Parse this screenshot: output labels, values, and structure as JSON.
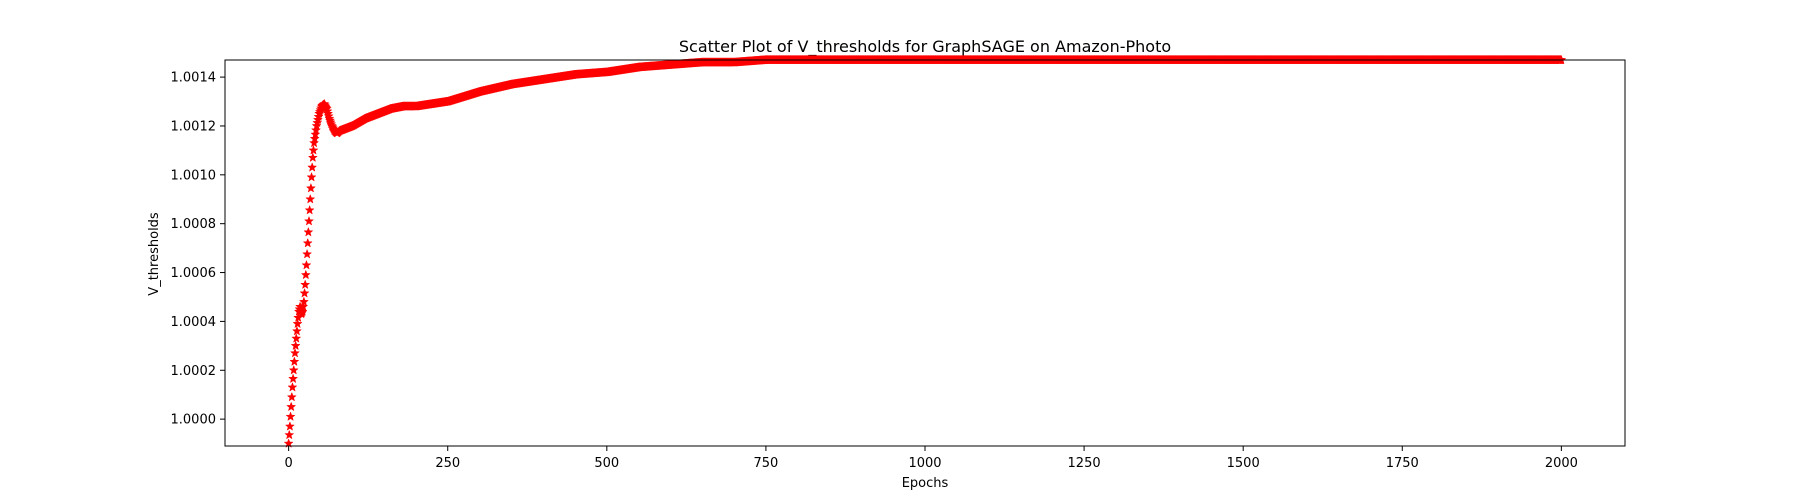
{
  "chart_data": {
    "type": "scatter",
    "title": "Scatter Plot of V_thresholds for GraphSAGE on Amazon-Photo",
    "xlabel": "Epochs",
    "ylabel": "V_thresholds",
    "xlim": [
      -100,
      2100
    ],
    "ylim": [
      0.99989,
      1.00147
    ],
    "x_ticks": [
      0,
      250,
      500,
      750,
      1000,
      1250,
      1500,
      1750,
      2000
    ],
    "x_tick_labels": [
      "0",
      "250",
      "500",
      "750",
      "1000",
      "1250",
      "1500",
      "1750",
      "2000"
    ],
    "y_ticks": [
      1.0,
      1.0002,
      1.0004,
      1.0006,
      1.0008,
      1.001,
      1.0012,
      1.0014
    ],
    "y_tick_labels": [
      "1.0000",
      "1.0002",
      "1.0004",
      "1.0006",
      "1.0008",
      "1.0010",
      "1.0012",
      "1.0014"
    ],
    "grid": false,
    "legend": "none",
    "marker": "star",
    "color": "#ff0000",
    "series": [
      {
        "x": [
          0,
          2,
          4,
          6,
          8,
          10,
          12,
          14,
          16,
          18,
          20,
          22,
          24,
          26,
          28,
          30,
          32,
          34,
          36,
          38,
          40,
          44,
          48,
          52,
          56,
          60,
          64,
          68,
          72,
          76,
          80,
          100,
          120,
          140,
          160,
          180,
          200,
          250,
          300,
          350,
          400,
          450,
          500,
          550,
          600,
          650,
          700,
          750,
          800,
          900,
          1000,
          1100,
          1200,
          1300,
          1400,
          1500,
          1600,
          1700,
          1800,
          1900,
          2000
        ],
        "y": [
          0.9999,
          0.99997,
          1.00005,
          1.00013,
          1.0002,
          1.00027,
          1.00033,
          1.00039,
          1.00044,
          1.00046,
          1.00043,
          1.00044,
          1.00048,
          1.00055,
          1.00063,
          1.00072,
          1.00081,
          1.0009,
          1.00099,
          1.00107,
          1.00113,
          1.0012,
          1.00125,
          1.00128,
          1.00129,
          1.00127,
          1.00123,
          1.0012,
          1.00118,
          1.00117,
          1.00118,
          1.0012,
          1.00123,
          1.00125,
          1.00127,
          1.00128,
          1.00128,
          1.0013,
          1.00134,
          1.00137,
          1.00139,
          1.00141,
          1.00142,
          1.00144,
          1.00145,
          1.00146,
          1.00146,
          1.00147,
          1.00147,
          1.00147,
          1.00147,
          1.00147,
          1.00147,
          1.00147,
          1.00147,
          1.00147,
          1.00147,
          1.00147,
          1.00147,
          1.00147,
          1.00147
        ]
      }
    ]
  }
}
